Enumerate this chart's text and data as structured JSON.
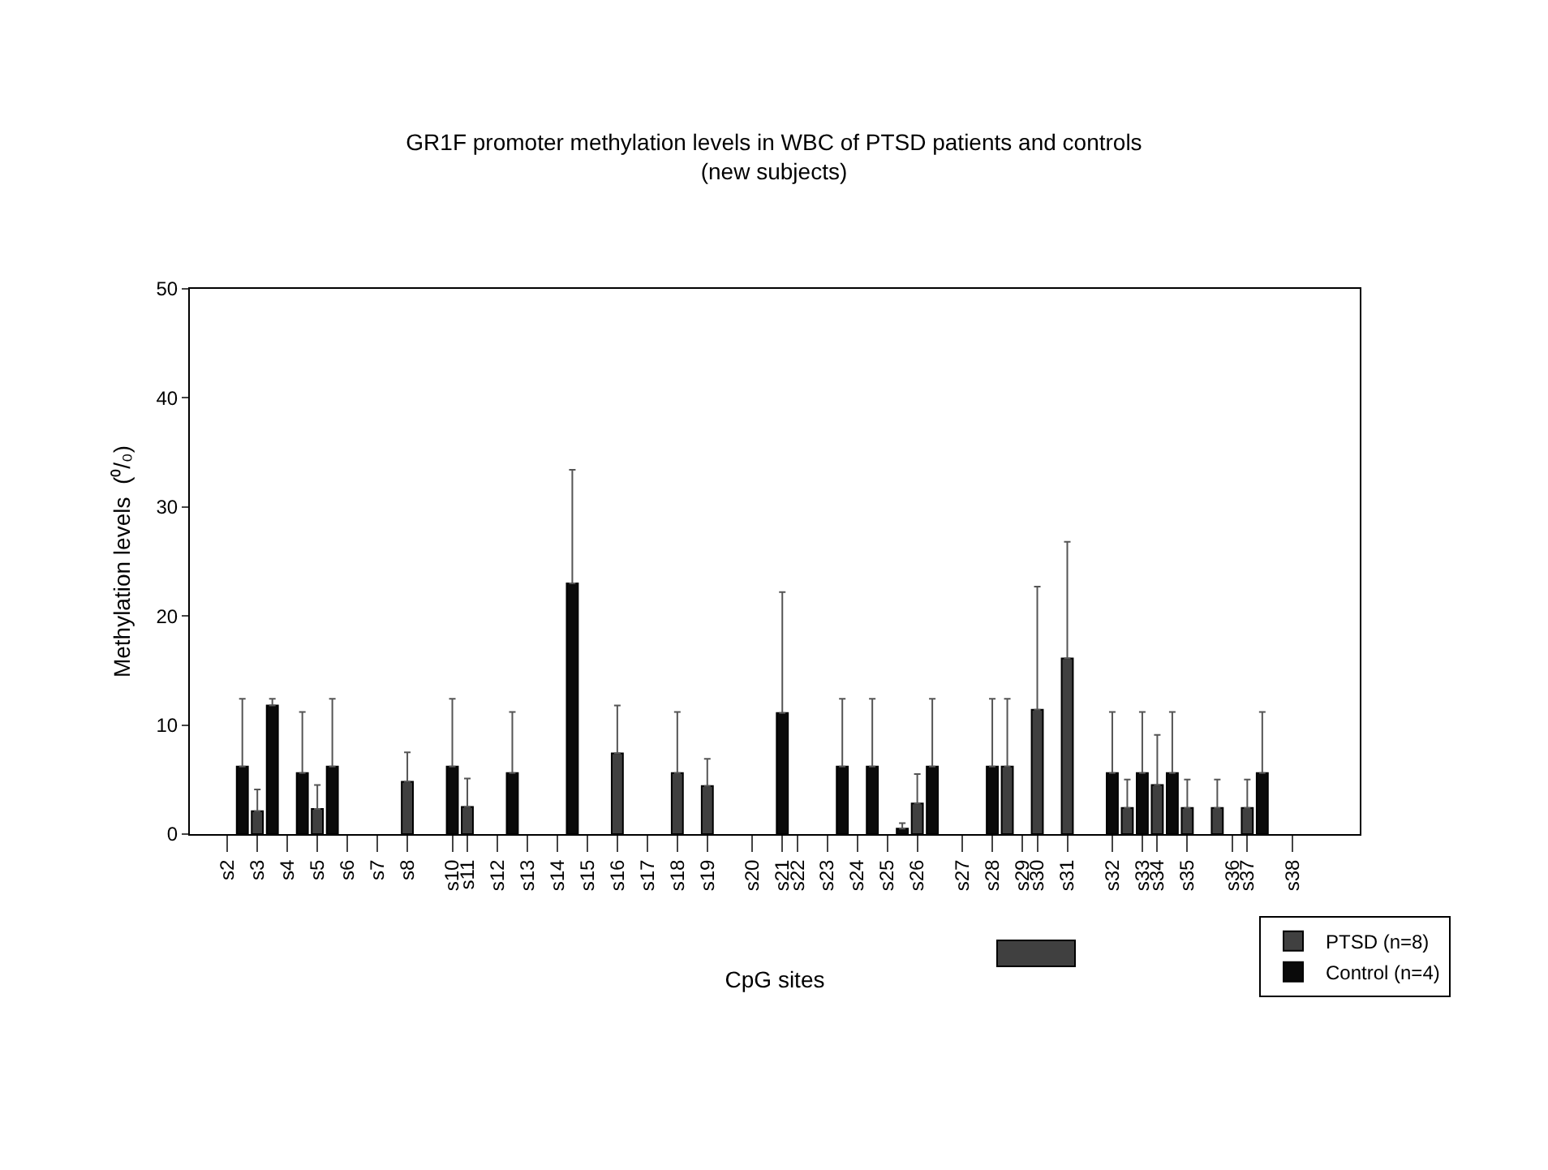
{
  "chart_data": {
    "type": "bar",
    "title": "GR1F promoter methylation levels in WBC of PTSD patients and controls\n(new subjects)",
    "xlabel": "CpG sites",
    "ylabel": "Methylation levels  (⁰/₀)",
    "categories": [
      null,
      null,
      "s2",
      null,
      "s3",
      null,
      "s4",
      null,
      "s5",
      null,
      "s6",
      null,
      "s7",
      null,
      "s8",
      null,
      null,
      "s10",
      "s11",
      null,
      "s12",
      null,
      "s13",
      null,
      "s14",
      null,
      "s15",
      null,
      "s16",
      null,
      "s17",
      null,
      "s18",
      null,
      "s19",
      null,
      null,
      "s20",
      null,
      "s21",
      "s22",
      null,
      "s23",
      null,
      "s24",
      null,
      "s25",
      null,
      "s26",
      null,
      null,
      "s27",
      null,
      "s28",
      null,
      "s29",
      "s30",
      null,
      "s31",
      null,
      null,
      "s32",
      null,
      "s33",
      "s34",
      null,
      "s35",
      null,
      null,
      "s36",
      "s37",
      null,
      null,
      "s38",
      null,
      null,
      null,
      null
    ],
    "series": [
      {
        "name": "PTSD (n=8)",
        "color": "#404040",
        "values": [
          null,
          null,
          null,
          null,
          2.1,
          null,
          null,
          null,
          2.3,
          null,
          null,
          null,
          null,
          null,
          4.8,
          null,
          null,
          null,
          2.5,
          null,
          null,
          null,
          null,
          null,
          null,
          null,
          null,
          null,
          7.4,
          null,
          null,
          null,
          5.6,
          null,
          4.4,
          null,
          null,
          null,
          null,
          null,
          null,
          null,
          null,
          null,
          null,
          null,
          null,
          null,
          2.8,
          null,
          null,
          null,
          null,
          null,
          6.2,
          null,
          11.4,
          null,
          16.1,
          null,
          null,
          null,
          2.4,
          null,
          4.5,
          null,
          2.4,
          null,
          2.4,
          null,
          2.4,
          null,
          null,
          null,
          null,
          null,
          null,
          null
        ],
        "errors": [
          null,
          null,
          null,
          null,
          [
            2.1,
            4.1
          ],
          null,
          null,
          null,
          [
            2.3,
            4.5
          ],
          null,
          null,
          null,
          null,
          null,
          [
            4.8,
            7.5
          ],
          null,
          null,
          null,
          [
            2.5,
            5.1
          ],
          null,
          null,
          null,
          null,
          null,
          null,
          null,
          null,
          null,
          [
            7.4,
            11.8
          ],
          null,
          null,
          null,
          [
            5.6,
            11.2
          ],
          null,
          [
            4.4,
            6.9
          ],
          null,
          null,
          null,
          null,
          null,
          null,
          null,
          null,
          null,
          null,
          null,
          null,
          null,
          [
            2.8,
            5.5
          ],
          null,
          null,
          null,
          null,
          null,
          [
            6.2,
            12.4
          ],
          null,
          [
            11.4,
            22.7
          ],
          null,
          [
            16.1,
            26.8
          ],
          null,
          null,
          null,
          [
            2.4,
            5.0
          ],
          null,
          [
            4.5,
            9.1
          ],
          null,
          [
            2.4,
            5.0
          ],
          null,
          [
            2.4,
            5.0
          ],
          null,
          [
            2.4,
            5.0
          ],
          null,
          null,
          null,
          null,
          null,
          null,
          null
        ]
      },
      {
        "name": "Control (n=4)",
        "color": "#0a0a0a",
        "values": [
          null,
          null,
          null,
          6.2,
          null,
          11.8,
          null,
          5.6,
          null,
          6.2,
          null,
          null,
          null,
          null,
          null,
          null,
          null,
          6.2,
          null,
          null,
          null,
          5.6,
          null,
          null,
          null,
          23.0,
          null,
          null,
          null,
          null,
          null,
          null,
          null,
          null,
          null,
          null,
          null,
          null,
          null,
          11.1,
          null,
          null,
          null,
          6.2,
          null,
          6.2,
          null,
          0.5,
          null,
          6.2,
          null,
          null,
          null,
          6.2,
          null,
          null,
          null,
          null,
          null,
          null,
          null,
          5.6,
          null,
          5.6,
          null,
          5.6,
          null,
          null,
          null,
          null,
          null,
          5.6,
          null,
          null,
          null,
          null,
          null,
          null
        ],
        "errors": [
          null,
          null,
          null,
          [
            6.2,
            12.4
          ],
          null,
          [
            11.8,
            12.4
          ],
          null,
          [
            5.6,
            11.2
          ],
          null,
          [
            6.2,
            12.4
          ],
          null,
          null,
          null,
          null,
          null,
          null,
          null,
          [
            6.2,
            12.4
          ],
          null,
          null,
          null,
          [
            5.6,
            11.2
          ],
          null,
          null,
          null,
          [
            23.0,
            33.4
          ],
          null,
          null,
          null,
          null,
          null,
          null,
          null,
          null,
          null,
          null,
          null,
          null,
          null,
          [
            11.1,
            22.2
          ],
          null,
          null,
          null,
          [
            6.2,
            12.4
          ],
          null,
          [
            6.2,
            12.4
          ],
          null,
          [
            0.5,
            1.0
          ],
          null,
          [
            6.2,
            12.4
          ],
          null,
          null,
          null,
          [
            6.2,
            12.4
          ],
          null,
          null,
          null,
          null,
          null,
          null,
          null,
          [
            5.6,
            11.2
          ],
          null,
          [
            5.6,
            11.2
          ],
          null,
          [
            5.6,
            11.2
          ],
          null,
          null,
          null,
          null,
          null,
          [
            5.6,
            11.2
          ],
          null,
          null,
          null,
          null,
          null,
          null
        ]
      }
    ],
    "ylim": [
      0,
      50
    ],
    "yticks": [
      0,
      10,
      20,
      30,
      40,
      50
    ],
    "grid": false,
    "legend": "bottom right"
  }
}
